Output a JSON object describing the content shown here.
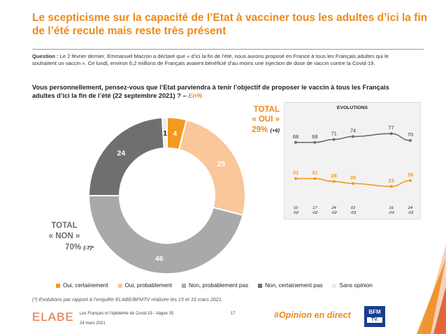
{
  "title": "Le scepticisme sur la capacité de l’Etat à vacciner tous les adultes d’ici la fin de l’été recule mais reste très présent",
  "question": {
    "label": "Question :",
    "text": " Le 2 février dernier, Emmanuel Macron a déclaré que « d’ici la fin de l’été, nous aurons proposé en France à tous les Français adultes qui le souhaitent un vaccin ». Ce lundi, environ 6,2 millions de Français avaient bénéficié d’au moins une injection de dose de vaccin contre la Covid-19.",
    "main": "Vous personnellement, pensez-vous que l’Etat parviendra à tenir l’objectif de proposer le vaccin à tous les Français adultes d’ici la fin de l’été (22 septembre 2021) ? –",
    "unit_note": "En%"
  },
  "total_oui": {
    "line1": "TOTAL",
    "line2": "« OUI »",
    "value": "29%",
    "delta": "(+6)"
  },
  "total_non": {
    "line1": "TOTAL",
    "line2": "« NON »",
    "value": "70%",
    "delta": "(-7)*"
  },
  "colors": {
    "oui_certainement": "#f39a1e",
    "oui_probablement": "#f9c79a",
    "non_probablement_pas": "#a9a9a9",
    "non_certainement_pas": "#6f6f6f",
    "sans_opinion": "#ececec",
    "accent": "#ee8a1b",
    "evo_oui": "#f39a1e",
    "evo_non": "#6f6f6f"
  },
  "chart_data": [
    {
      "type": "pie",
      "subtype": "donut",
      "categories": [
        "Oui, certainement",
        "Oui, probablement",
        "Non, probablement pas",
        "Non, certainement pas",
        "Sans opinion"
      ],
      "values": [
        4,
        25,
        46,
        24,
        1
      ],
      "labels": [
        "4",
        "25",
        "46",
        "24",
        "1"
      ]
    },
    {
      "type": "line",
      "title": "EVOLUTIONS",
      "categories": [
        "10 -02",
        "17 -02",
        "24 -02",
        "03 -03",
        "16 -03",
        "24 -03"
      ],
      "series": [
        {
          "key": "non",
          "values": [
            68,
            68,
            71,
            74,
            77,
            70
          ]
        },
        {
          "key": "oui",
          "values": [
            31,
            31,
            28,
            26,
            23,
            29
          ]
        }
      ],
      "category_positions": [
        0,
        1,
        2,
        3,
        5,
        6
      ],
      "ylim": [
        10,
        90
      ]
    }
  ],
  "legend": [
    {
      "label": "Oui, certainement",
      "color": "#f39a1e"
    },
    {
      "label": "Oui, probablement",
      "color": "#f9c79a"
    },
    {
      "label": "Non, probablement pas",
      "color": "#a9a9a9"
    },
    {
      "label": "Non, certainement pas",
      "color": "#6f6f6f"
    },
    {
      "label": "Sans opinion",
      "color": "#ececec"
    }
  ],
  "footnote": "(*) Evolutions par rapport à l’enquête ELABE/BFMTV réalisée les 15 et 16 mars 2021.",
  "footer": {
    "logo": "ELABE",
    "source": "Les Français et l’épidémie de Covid-19 - Vague 35",
    "date": "24 mars 2021",
    "page": "17",
    "hashtag": "#Opinion en direct",
    "bfm_line1": "BFM",
    "bfm_line2": "TV."
  }
}
